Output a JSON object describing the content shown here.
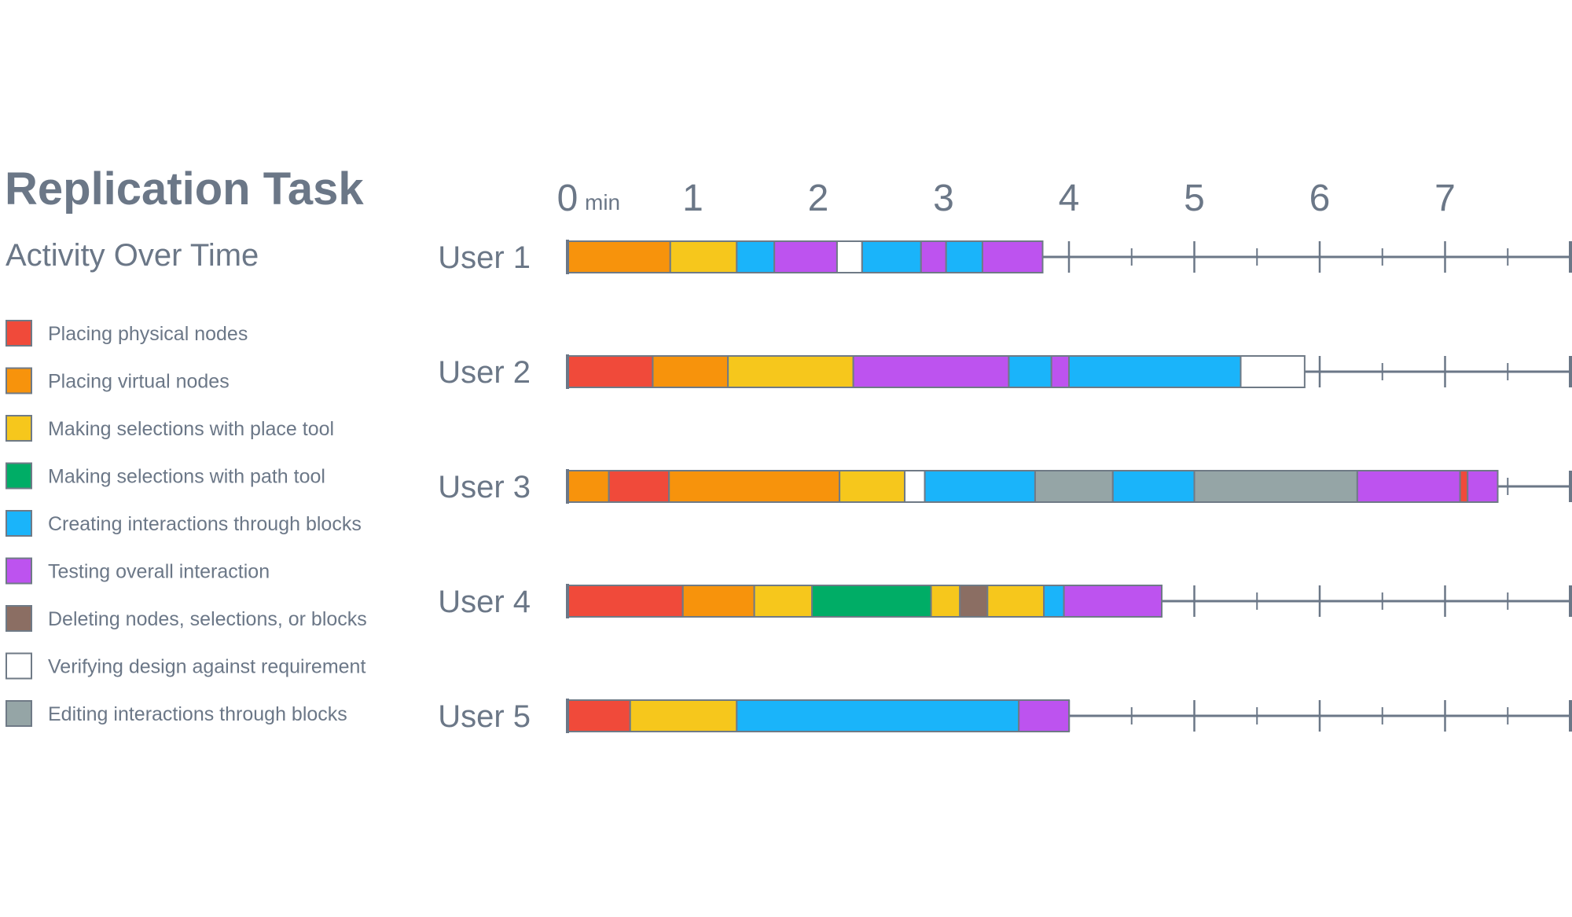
{
  "chart_data": {
    "type": "timeline",
    "title": "Replication Task",
    "subtitle": "Activity Over Time",
    "x_unit": "min",
    "x_ticks": [
      "0",
      "1",
      "2",
      "3",
      "4",
      "5",
      "6",
      "7"
    ],
    "xlim": [
      0,
      8
    ],
    "legend": [
      {
        "key": "physical",
        "label": "Placing physical nodes",
        "color": "#f04a3a"
      },
      {
        "key": "virtual",
        "label": "Placing virtual nodes",
        "color": "#f7930c"
      },
      {
        "key": "place",
        "label": "Making selections with place tool",
        "color": "#f6c71c"
      },
      {
        "key": "path",
        "label": "Making selections with path tool",
        "color": "#00ad66"
      },
      {
        "key": "create",
        "label": "Creating interactions through blocks",
        "color": "#1ab4fa"
      },
      {
        "key": "test",
        "label": "Testing overall interaction",
        "color": "#bd53ef"
      },
      {
        "key": "delete",
        "label": "Deleting nodes, selections, or blocks",
        "color": "#8b6e63"
      },
      {
        "key": "verify",
        "label": "Verifying design against requirement",
        "color": "#ffffff"
      },
      {
        "key": "edit",
        "label": "Editing interactions through blocks",
        "color": "#95a5a6"
      }
    ],
    "users": [
      {
        "label": "User 1",
        "segments": [
          {
            "a": "virtual",
            "start": 0,
            "end": 0.82
          },
          {
            "a": "place",
            "start": 0.82,
            "end": 1.35
          },
          {
            "a": "create",
            "start": 1.35,
            "end": 1.65
          },
          {
            "a": "test",
            "start": 1.65,
            "end": 2.15
          },
          {
            "a": "verify",
            "start": 2.15,
            "end": 2.35
          },
          {
            "a": "create",
            "start": 2.35,
            "end": 2.82
          },
          {
            "a": "test",
            "start": 2.82,
            "end": 3.02
          },
          {
            "a": "create",
            "start": 3.02,
            "end": 3.31
          },
          {
            "a": "test",
            "start": 3.31,
            "end": 3.79
          }
        ]
      },
      {
        "label": "User 2",
        "segments": [
          {
            "a": "physical",
            "start": 0,
            "end": 0.68
          },
          {
            "a": "virtual",
            "start": 0.68,
            "end": 1.28
          },
          {
            "a": "place",
            "start": 1.28,
            "end": 2.28
          },
          {
            "a": "test",
            "start": 2.28,
            "end": 3.52
          },
          {
            "a": "create",
            "start": 3.52,
            "end": 3.86
          },
          {
            "a": "test",
            "start": 3.86,
            "end": 4.0
          },
          {
            "a": "create",
            "start": 4.0,
            "end": 5.37
          },
          {
            "a": "verify",
            "start": 5.37,
            "end": 5.88
          }
        ]
      },
      {
        "label": "User 3",
        "segments": [
          {
            "a": "virtual",
            "start": 0,
            "end": 0.33
          },
          {
            "a": "physical",
            "start": 0.33,
            "end": 0.81
          },
          {
            "a": "virtual",
            "start": 0.81,
            "end": 2.17
          },
          {
            "a": "place",
            "start": 2.17,
            "end": 2.69
          },
          {
            "a": "verify",
            "start": 2.69,
            "end": 2.85
          },
          {
            "a": "create",
            "start": 2.85,
            "end": 3.73
          },
          {
            "a": "edit",
            "start": 3.73,
            "end": 4.35
          },
          {
            "a": "create",
            "start": 4.35,
            "end": 5.0
          },
          {
            "a": "edit",
            "start": 5.0,
            "end": 6.3
          },
          {
            "a": "test",
            "start": 6.3,
            "end": 7.12
          },
          {
            "a": "physical",
            "start": 7.12,
            "end": 7.18
          },
          {
            "a": "test",
            "start": 7.18,
            "end": 7.42
          }
        ]
      },
      {
        "label": "User 4",
        "segments": [
          {
            "a": "physical",
            "start": 0,
            "end": 0.92
          },
          {
            "a": "virtual",
            "start": 0.92,
            "end": 1.49
          },
          {
            "a": "place",
            "start": 1.49,
            "end": 1.95
          },
          {
            "a": "path",
            "start": 1.95,
            "end": 2.9
          },
          {
            "a": "place",
            "start": 2.9,
            "end": 3.13
          },
          {
            "a": "delete",
            "start": 3.13,
            "end": 3.35
          },
          {
            "a": "place",
            "start": 3.35,
            "end": 3.8
          },
          {
            "a": "create",
            "start": 3.8,
            "end": 3.96
          },
          {
            "a": "test",
            "start": 3.96,
            "end": 4.74
          }
        ]
      },
      {
        "label": "User 5",
        "segments": [
          {
            "a": "physical",
            "start": 0,
            "end": 0.5
          },
          {
            "a": "place",
            "start": 0.5,
            "end": 1.35
          },
          {
            "a": "create",
            "start": 1.35,
            "end": 3.6
          },
          {
            "a": "test",
            "start": 3.6,
            "end": 4.0
          }
        ]
      }
    ]
  }
}
